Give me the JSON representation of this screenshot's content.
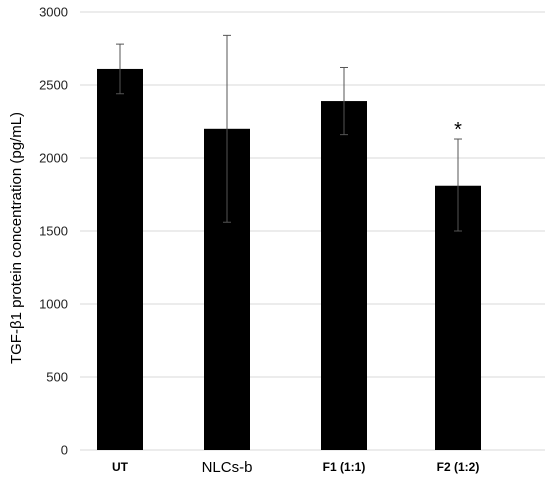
{
  "chart_data": {
    "type": "bar",
    "categories": [
      "UT",
      "NLCs-b",
      "F1 (1:1)",
      "F2 (1:2)"
    ],
    "category_bold": [
      true,
      false,
      true,
      true
    ],
    "values": [
      2610,
      2200,
      2390,
      1810
    ],
    "error_high": [
      2780,
      2840,
      2620,
      2130
    ],
    "error_low": [
      2440,
      1560,
      2160,
      1500
    ],
    "annotations": [
      "",
      "",
      "",
      "*"
    ],
    "ylabel": "TGF-β1 protein concentration (pg/mL)",
    "xlabel": "",
    "ylim": [
      0,
      3000
    ],
    "yticks": [
      0,
      500,
      1000,
      1500,
      2000,
      2500,
      3000
    ],
    "grid": true,
    "colors": {
      "bar": "#000000",
      "grid": "#d9d9d9",
      "error": "#555555"
    }
  }
}
